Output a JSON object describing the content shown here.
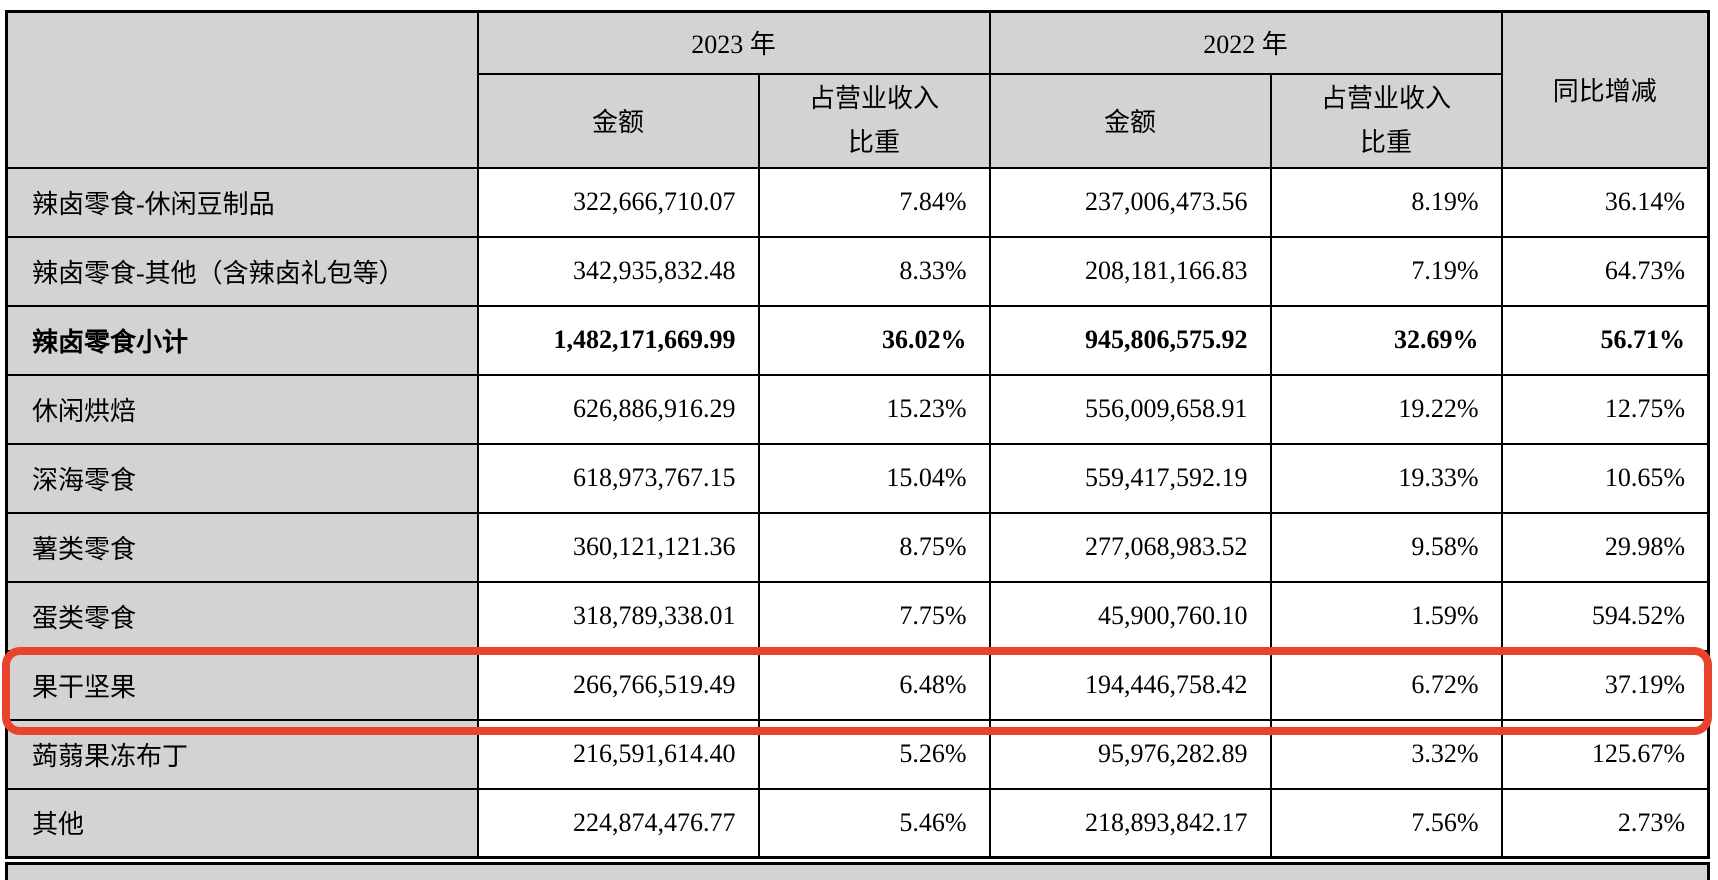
{
  "header": {
    "year_2023": "2023 年",
    "year_2022": "2022 年",
    "amount_label_2023": "金额",
    "amount_label_2022": "金额",
    "ratio_line1_2023": "占营业收入",
    "ratio_line2_2023": "比重",
    "ratio_line1_2022": "占营业收入",
    "ratio_line2_2022": "比重",
    "yoy_label": "同比增减"
  },
  "rows": [
    {
      "label": "辣卤零食-休闲豆制品",
      "amount_2023": "322,666,710.07",
      "ratio_2023": "7.84%",
      "amount_2022": "237,006,473.56",
      "ratio_2022": "8.19%",
      "yoy": "36.14%",
      "bold": false,
      "highlighted": false
    },
    {
      "label": "辣卤零食-其他（含辣卤礼包等）",
      "amount_2023": "342,935,832.48",
      "ratio_2023": "8.33%",
      "amount_2022": "208,181,166.83",
      "ratio_2022": "7.19%",
      "yoy": "64.73%",
      "bold": false,
      "highlighted": false
    },
    {
      "label": "辣卤零食小计",
      "amount_2023": "1,482,171,669.99",
      "ratio_2023": "36.02%",
      "amount_2022": "945,806,575.92",
      "ratio_2022": "32.69%",
      "yoy": "56.71%",
      "bold": true,
      "highlighted": false
    },
    {
      "label": "休闲烘焙",
      "amount_2023": "626,886,916.29",
      "ratio_2023": "15.23%",
      "amount_2022": "556,009,658.91",
      "ratio_2022": "19.22%",
      "yoy": "12.75%",
      "bold": false,
      "highlighted": false
    },
    {
      "label": "深海零食",
      "amount_2023": "618,973,767.15",
      "ratio_2023": "15.04%",
      "amount_2022": "559,417,592.19",
      "ratio_2022": "19.33%",
      "yoy": "10.65%",
      "bold": false,
      "highlighted": false
    },
    {
      "label": "薯类零食",
      "amount_2023": "360,121,121.36",
      "ratio_2023": "8.75%",
      "amount_2022": "277,068,983.52",
      "ratio_2022": "9.58%",
      "yoy": "29.98%",
      "bold": false,
      "highlighted": false
    },
    {
      "label": "蛋类零食",
      "amount_2023": "318,789,338.01",
      "ratio_2023": "7.75%",
      "amount_2022": "45,900,760.10",
      "ratio_2022": "1.59%",
      "yoy": "594.52%",
      "bold": false,
      "highlighted": false
    },
    {
      "label": "果干坚果",
      "amount_2023": "266,766,519.49",
      "ratio_2023": "6.48%",
      "amount_2022": "194,446,758.42",
      "ratio_2022": "6.72%",
      "yoy": "37.19%",
      "bold": false,
      "highlighted": true
    },
    {
      "label": "蒟蒻果冻布丁",
      "amount_2023": "216,591,614.40",
      "ratio_2023": "5.26%",
      "amount_2022": "95,976,282.89",
      "ratio_2022": "3.32%",
      "yoy": "125.67%",
      "bold": false,
      "highlighted": false
    },
    {
      "label": "其他",
      "amount_2023": "224,874,476.77",
      "ratio_2023": "5.46%",
      "amount_2022": "218,893,842.17",
      "ratio_2022": "7.56%",
      "yoy": "2.73%",
      "bold": false,
      "highlighted": false
    }
  ],
  "colors": {
    "header_bg": "#d3d3d3",
    "label_bg": "#d3d3d3",
    "cell_bg": "#ffffff",
    "table_border": "#000000",
    "highlight_border": "#e8432c"
  }
}
